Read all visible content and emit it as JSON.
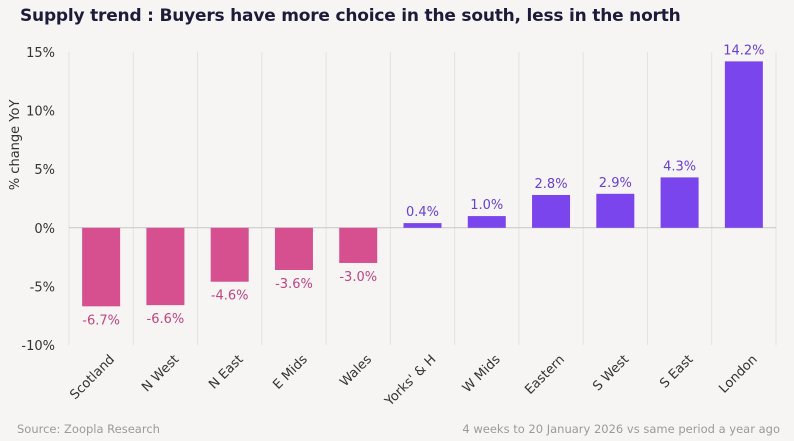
{
  "chart_data": {
    "type": "bar",
    "title": "Supply trend : Buyers have more choice in the south, less in the north",
    "xlabel": "",
    "ylabel": "% change YoY",
    "categories": [
      "Scotland",
      "N West",
      "N East",
      "E Mids",
      "Wales",
      "Yorks' & H",
      "W Mids",
      "Eastern",
      "S West",
      "S East",
      "London"
    ],
    "values": [
      -6.7,
      -6.6,
      -4.6,
      -3.6,
      -3.0,
      0.4,
      1.0,
      2.8,
      2.9,
      4.3,
      14.2
    ],
    "data_labels": [
      "-6.7%",
      "-6.6%",
      "-4.6%",
      "-3.6%",
      "-3.0%",
      "0.4%",
      "1.0%",
      "2.8%",
      "2.9%",
      "4.3%",
      "14.2%"
    ],
    "ylim": [
      -10,
      15
    ],
    "yticks": [
      15,
      10,
      5,
      0,
      -5,
      -10
    ],
    "ytick_labels": [
      "15%",
      "10%",
      "5%",
      "0%",
      "-5%",
      "-10%"
    ],
    "grid": "vertical separators between categories",
    "colors": {
      "negative": "#d64f8f",
      "positive": "#7a45ec",
      "negative_label": "#c24480",
      "positive_label": "#6a3fd8"
    }
  },
  "footer": {
    "source": "Source: Zoopla Research",
    "note": "4 weeks to 20 January 2026 vs same period a year ago"
  }
}
